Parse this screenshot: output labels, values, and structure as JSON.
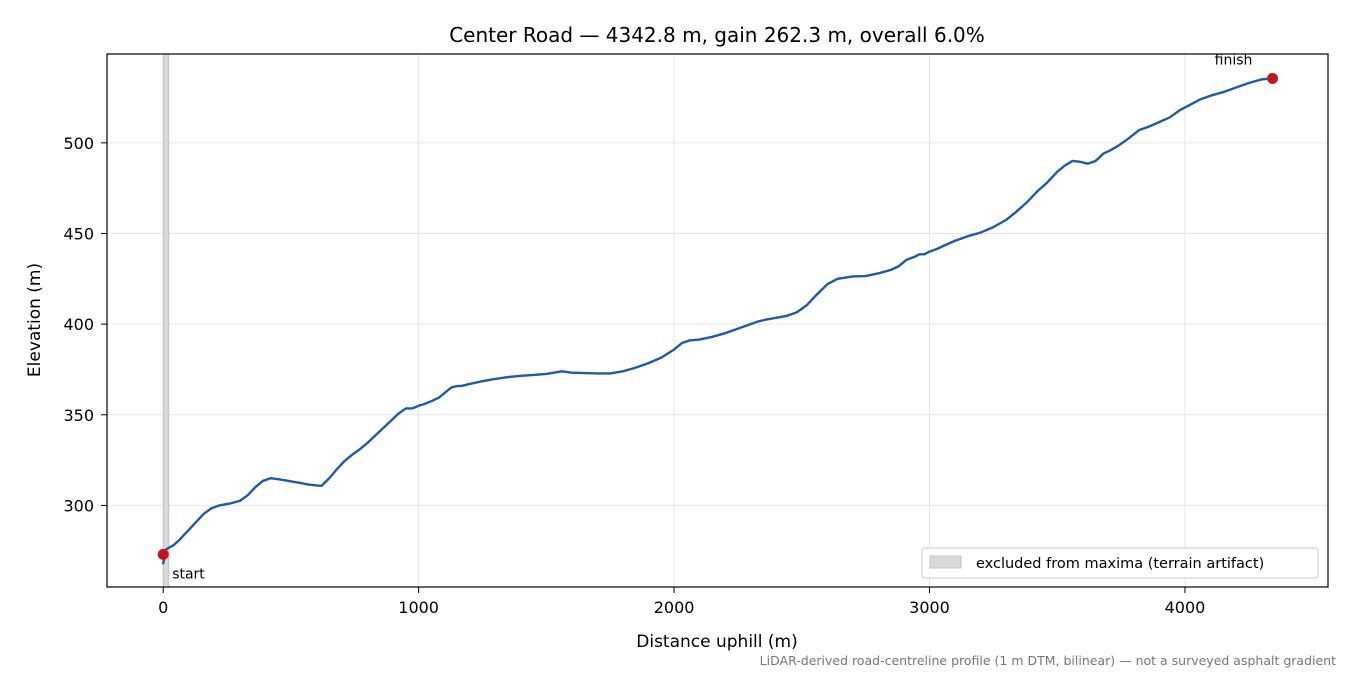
{
  "chart_data": {
    "type": "line",
    "title": "Center Road — 4342.8 m, gain 262.3 m, overall 6.0%",
    "xlabel": "Distance uphill (m)",
    "ylabel": "Elevation (m)",
    "xlim": [
      -220,
      4560
    ],
    "ylim": [
      255,
      549
    ],
    "x_ticks": [
      0,
      1000,
      2000,
      3000,
      4000
    ],
    "y_ticks": [
      300,
      350,
      400,
      450,
      500
    ],
    "x_tick_labels": [
      "0",
      "1000",
      "2000",
      "3000",
      "4000"
    ],
    "y_tick_labels": [
      "300",
      "350",
      "400",
      "450",
      "500"
    ],
    "grid": true,
    "legend_position": "lower-right",
    "legend_label": "excluded from maxima (terrain artifact)",
    "excluded_range": [
      0,
      22
    ],
    "colors": {
      "line": "#1f5aa8",
      "endpoint": "#c0161f",
      "excluded_band": "#d9d9d9",
      "grid": "#e6e6e6",
      "footnote": "#777777"
    },
    "series": [
      {
        "x": [
          0,
          5,
          10,
          20,
          40,
          60,
          80,
          100,
          130,
          160,
          190,
          220,
          260,
          300,
          330,
          360,
          390,
          420,
          450,
          480,
          510,
          540,
          570,
          600,
          620,
          650,
          680,
          710,
          740,
          770,
          800,
          830,
          860,
          890,
          920,
          950,
          975,
          1000,
          1020,
          1050,
          1080,
          1110,
          1130,
          1150,
          1170,
          1200,
          1250,
          1300,
          1350,
          1400,
          1450,
          1500,
          1530,
          1560,
          1600,
          1650,
          1700,
          1750,
          1800,
          1850,
          1900,
          1950,
          2000,
          2030,
          2060,
          2100,
          2150,
          2200,
          2250,
          2300,
          2330,
          2360,
          2400,
          2440,
          2480,
          2520,
          2560,
          2600,
          2640,
          2700,
          2750,
          2800,
          2850,
          2880,
          2910,
          2940,
          2960,
          2980,
          3000,
          3030,
          3060,
          3100,
          3150,
          3200,
          3250,
          3300,
          3340,
          3380,
          3420,
          3460,
          3500,
          3530,
          3560,
          3590,
          3620,
          3650,
          3680,
          3710,
          3740,
          3780,
          3820,
          3860,
          3900,
          3940,
          3980,
          4020,
          4060,
          4100,
          4150,
          4200,
          4250,
          4300,
          4342
        ],
        "y": [
          268,
          272,
          275.5,
          276.5,
          278,
          280.5,
          283.5,
          286.5,
          291,
          295.5,
          298.5,
          300,
          301,
          302.5,
          305.5,
          310,
          313.5,
          315,
          314.5,
          313.8,
          313,
          312.3,
          311.5,
          311,
          310.8,
          315,
          320,
          324.5,
          328,
          331,
          334.5,
          338.5,
          342.5,
          346.5,
          350.5,
          353.5,
          353.5,
          355,
          355.8,
          357.5,
          359.5,
          363,
          365.2,
          365.8,
          366,
          367,
          368.5,
          369.8,
          370.8,
          371.5,
          372,
          372.5,
          373.2,
          374,
          373.2,
          373,
          372.8,
          372.8,
          374,
          376,
          378.5,
          381.5,
          386,
          389.5,
          391,
          391.5,
          393,
          395,
          397.5,
          400,
          401.5,
          402.5,
          403.5,
          404.5,
          406.5,
          410.5,
          416.5,
          422,
          425,
          426.3,
          426.5,
          428,
          430,
          432,
          435.5,
          437,
          438.5,
          438.5,
          440,
          441.5,
          443.5,
          446,
          448.5,
          450.5,
          453.5,
          457.5,
          462,
          467,
          473,
          478,
          484,
          487.5,
          490,
          489.5,
          488.5,
          490,
          494,
          496,
          498.5,
          502.5,
          507,
          509,
          511.5,
          514,
          518,
          521,
          524,
          526,
          528,
          530.5,
          533,
          535,
          535.5
        ]
      }
    ],
    "markers": [
      {
        "label": "start",
        "x": 0,
        "y": 273
      },
      {
        "label": "finish",
        "x": 4342.8,
        "y": 535.5
      }
    ],
    "footnote": "LiDAR-derived road-centreline profile (1 m DTM, bilinear) — not a surveyed asphalt gradient"
  }
}
